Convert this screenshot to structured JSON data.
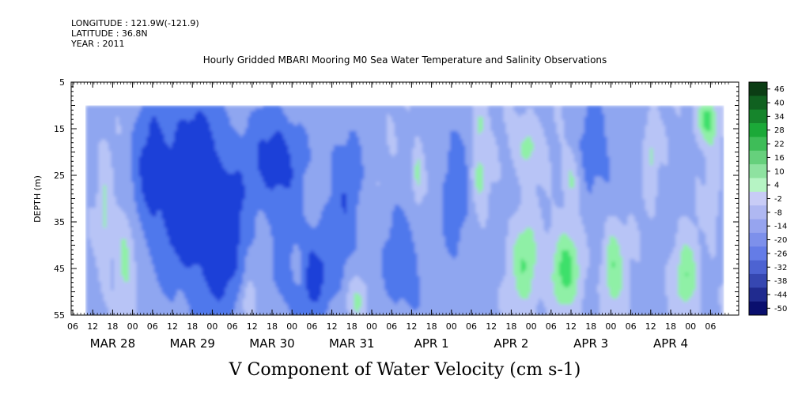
{
  "header": {
    "longitude": "LONGITUDE : 121.9W(-121.9)",
    "latitude": "LATITUDE : 36.8N",
    "year": "YEAR : 2011"
  },
  "chart_data": {
    "type": "heatmap",
    "title": "Hourly Gridded MBARI Mooring M0 Sea Water Temperature and Salinity Observations",
    "xlabel": "V Component of Water Velocity (cm s-1)",
    "ylabel": "DEPTH (m)",
    "ylim": [
      55,
      5
    ],
    "yticks": [
      "5",
      "15",
      "25",
      "35",
      "45",
      "55"
    ],
    "x_hour_ticks": [
      "06",
      "12",
      "18",
      "00",
      "06",
      "12",
      "18",
      "00",
      "06",
      "12",
      "18",
      "00",
      "06",
      "12",
      "18",
      "00",
      "06",
      "12",
      "18",
      "00",
      "06",
      "12",
      "18",
      "00",
      "06",
      "12",
      "18",
      "00",
      "06",
      "12",
      "18",
      "00",
      "06"
    ],
    "x_day_labels": [
      {
        "label": "MAR 28",
        "tick_index": 2
      },
      {
        "label": "MAR 29",
        "tick_index": 6
      },
      {
        "label": "MAR 30",
        "tick_index": 10
      },
      {
        "label": "MAR 31",
        "tick_index": 14
      },
      {
        "label": "APR  1",
        "tick_index": 18
      },
      {
        "label": "APR  2",
        "tick_index": 22
      },
      {
        "label": "APR  3",
        "tick_index": 26
      },
      {
        "label": "APR  4",
        "tick_index": 30
      }
    ],
    "data_extent": {
      "start_tick_index": 0.65,
      "end_tick_index": 32.6,
      "depth_top": 10,
      "depth_bottom": 55
    },
    "colorbar": {
      "labels": [
        "46",
        "40",
        "34",
        "28",
        "22",
        "16",
        "10",
        "4",
        "-2",
        "-8",
        "-14",
        "-20",
        "-26",
        "-32",
        "-38",
        "-44",
        "-50"
      ],
      "range": [
        -50,
        50
      ]
    },
    "colors": {
      "strong_negative": "#1a3fd8",
      "negative": "#4f78ec",
      "weak_negative": "#8fa6f0",
      "near_zero": "#b8c4f6",
      "weak_positive": "#8ff0a6",
      "positive": "#3ee06a"
    }
  }
}
